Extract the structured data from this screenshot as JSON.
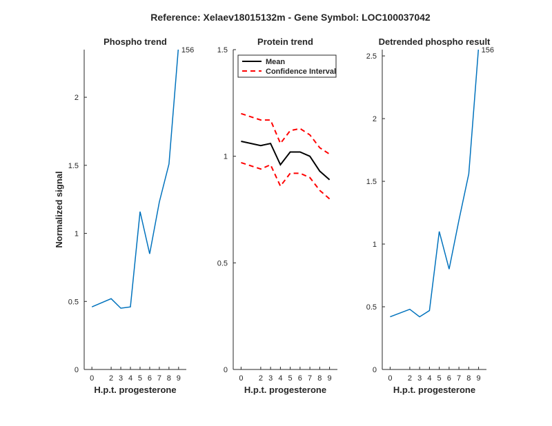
{
  "figure": {
    "suptitle": "Reference:  Xelaev18015132m - Gene Symbol:  LOC100037042"
  },
  "chart_data": [
    {
      "type": "line",
      "title": "Phospho trend",
      "xlabel": "H.p.t. progesterone",
      "ylabel": "Normalized signal",
      "xlim": [
        -0.8,
        9.8
      ],
      "ylim": [
        0,
        2.35
      ],
      "xticks": [
        0,
        2,
        3,
        4,
        5,
        6,
        7,
        8,
        9
      ],
      "yticks": [
        0,
        0.5,
        1,
        1.5,
        2
      ],
      "ytick_labels": [
        "0",
        "0.5",
        "1",
        "1.5",
        "2"
      ],
      "series": [
        {
          "x": [
            0,
            2,
            3,
            4,
            5,
            6,
            7,
            8,
            9
          ],
          "values": [
            0.46,
            0.52,
            0.45,
            0.46,
            1.16,
            0.85,
            1.23,
            1.51,
            2.38
          ],
          "color": "#0072BD",
          "style": "solid"
        }
      ],
      "annotation": {
        "text": "156",
        "x": 9,
        "y": 2.35
      },
      "grid": false
    },
    {
      "type": "line",
      "title": "Protein trend",
      "xlabel": "H.p.t. progesterone",
      "ylabel": "",
      "xlim": [
        -0.8,
        9.8
      ],
      "ylim": [
        0,
        1.5
      ],
      "xticks": [
        0,
        2,
        3,
        4,
        5,
        6,
        7,
        8,
        9
      ],
      "yticks": [
        0,
        0.5,
        1,
        1.5
      ],
      "ytick_labels": [
        "0",
        "0.5",
        "1",
        "1.5"
      ],
      "series": [
        {
          "name": "Mean",
          "x": [
            0,
            2,
            3,
            4,
            5,
            6,
            7,
            8,
            9
          ],
          "values": [
            1.07,
            1.05,
            1.06,
            0.96,
            1.02,
            1.02,
            1.0,
            0.93,
            0.89
          ],
          "color": "#000000",
          "style": "solid"
        },
        {
          "name": "Confidence Interval",
          "x": [
            0,
            2,
            3,
            4,
            5,
            6,
            7,
            8,
            9
          ],
          "values": [
            1.2,
            1.17,
            1.17,
            1.06,
            1.12,
            1.13,
            1.1,
            1.04,
            1.01
          ],
          "color": "#FF0000",
          "style": "dashed"
        },
        {
          "x": [
            0,
            2,
            3,
            4,
            5,
            6,
            7,
            8,
            9
          ],
          "values": [
            0.97,
            0.94,
            0.96,
            0.86,
            0.92,
            0.92,
            0.9,
            0.84,
            0.8
          ],
          "color": "#FF0000",
          "style": "dashed",
          "legend": false
        }
      ],
      "legend": {
        "location": "top-right",
        "entries": [
          "Mean",
          "Confidence Interval"
        ]
      },
      "grid": false
    },
    {
      "type": "line",
      "title": "Detrended phospho result",
      "xlabel": "H.p.t. progesterone",
      "ylabel": "",
      "xlim": [
        -0.8,
        9.8
      ],
      "ylim": [
        0,
        2.55
      ],
      "xticks": [
        0,
        2,
        3,
        4,
        5,
        6,
        7,
        8,
        9
      ],
      "yticks": [
        0,
        0.5,
        1,
        1.5,
        2,
        2.5
      ],
      "ytick_labels": [
        "0",
        "0.5",
        "1",
        "1.5",
        "2",
        "2.5"
      ],
      "series": [
        {
          "x": [
            0,
            2,
            3,
            4,
            5,
            6,
            7,
            8,
            9
          ],
          "values": [
            0.42,
            0.48,
            0.42,
            0.47,
            1.1,
            0.8,
            1.19,
            1.56,
            2.57
          ],
          "color": "#0072BD",
          "style": "solid"
        }
      ],
      "annotation": {
        "text": "156",
        "x": 9,
        "y": 2.55
      },
      "grid": false
    }
  ]
}
